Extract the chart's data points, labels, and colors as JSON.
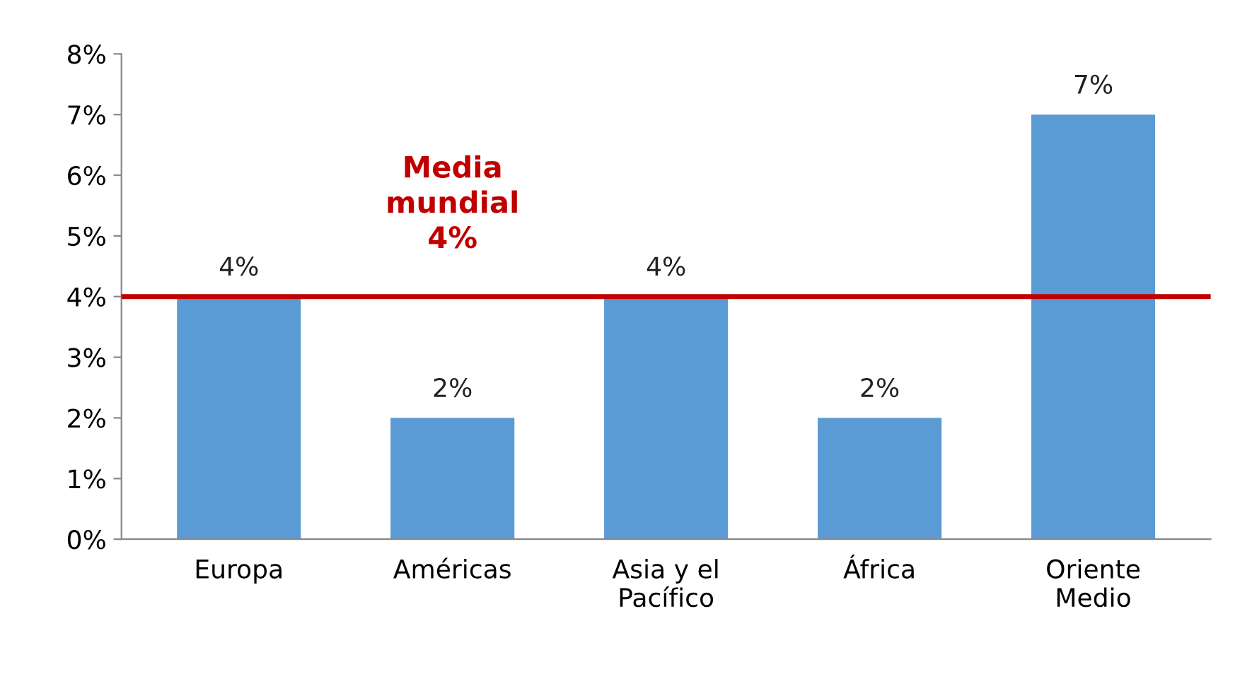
{
  "chart_data": {
    "type": "bar",
    "categories": [
      "Europa",
      "Américas",
      "Asia y el\nPacífico",
      "África",
      "Oriente\nMedio"
    ],
    "values": [
      4,
      2,
      4,
      2,
      7
    ],
    "value_labels": [
      "4%",
      "2%",
      "4%",
      "2%",
      "7%"
    ],
    "color": "#5b9bd5",
    "ylim": [
      0,
      8
    ],
    "yticks": [
      {
        "value": 0,
        "label": "0%"
      },
      {
        "value": 1,
        "label": "1%"
      },
      {
        "value": 2,
        "label": "2%"
      },
      {
        "value": 3,
        "label": "3%"
      },
      {
        "value": 4,
        "label": "4%"
      },
      {
        "value": 5,
        "label": "5%"
      },
      {
        "value": 6,
        "label": "6%"
      },
      {
        "value": 7,
        "label": "7%"
      },
      {
        "value": 8,
        "label": "8%"
      }
    ],
    "ref_lines": [
      {
        "axis": "y",
        "value": 4,
        "label": "Media\nmundial\n4%",
        "color": "#c00000",
        "line_style": "solid"
      }
    ],
    "grid": false,
    "legend": false
  }
}
